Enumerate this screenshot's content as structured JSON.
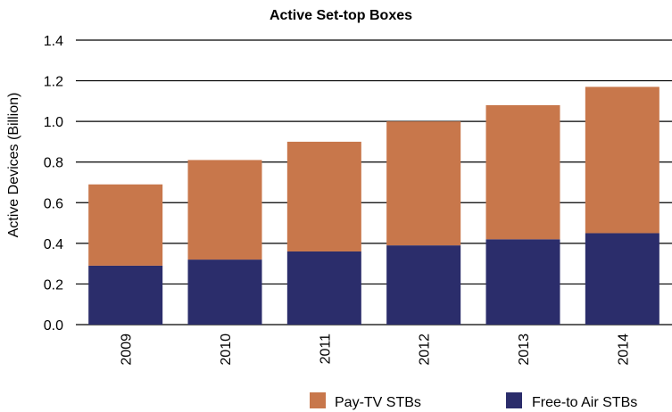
{
  "chart_data": {
    "type": "bar",
    "stacked": true,
    "title": "Active Set-top Boxes",
    "xlabel": "",
    "ylabel": "Active Devices (Billion)",
    "ylim": [
      0,
      1.4
    ],
    "yticks": [
      "0.0",
      "0.2",
      "0.4",
      "0.6",
      "0.8",
      "1.0",
      "1.2",
      "1.4"
    ],
    "grid": "horizontal",
    "legend_position": "bottom",
    "categories": [
      "2009",
      "2010",
      "2011",
      "2012",
      "2013",
      "2014"
    ],
    "series": [
      {
        "name": "Free-to Air STBs",
        "color": "#2b2d6b",
        "values": [
          0.29,
          0.32,
          0.36,
          0.39,
          0.42,
          0.45
        ]
      },
      {
        "name": "Pay-TV STBs",
        "color": "#c8774b",
        "values": [
          0.4,
          0.49,
          0.54,
          0.61,
          0.66,
          0.72
        ]
      }
    ],
    "legend_order": [
      "Pay-TV STBs",
      "Free-to Air STBs"
    ]
  }
}
